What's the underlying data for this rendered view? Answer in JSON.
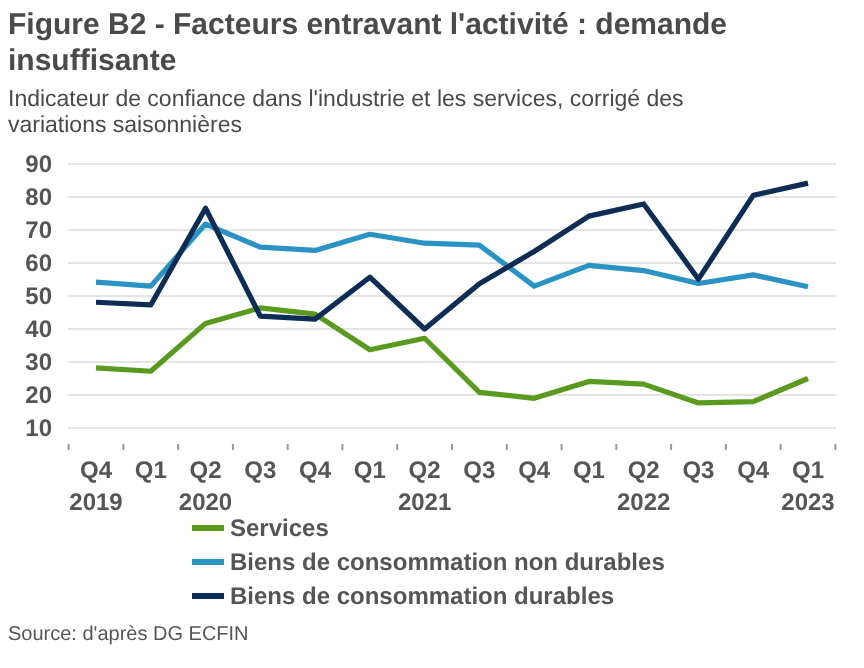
{
  "chart_data": {
    "type": "line",
    "title": "Figure B2 - Facteurs entravant l'activité : demande insuffisante",
    "subtitle": "Indicateur de confiance dans l'industrie et les services, corrigé des variations saisonnières",
    "categories": [
      "Q4\n2019",
      "Q1",
      "Q2\n2020",
      "Q3",
      "Q4",
      "Q1",
      "Q2\n2021",
      "Q3",
      "Q4",
      "Q1",
      "Q2\n2022",
      "Q3",
      "Q4",
      "Q1\n2023"
    ],
    "series": [
      {
        "name": "Services",
        "color": "#5a9a1e",
        "values": [
          28.2,
          27.2,
          41.7,
          46.4,
          44.5,
          33.7,
          37.2,
          20.8,
          19,
          24.1,
          23.3,
          17.6,
          18,
          25
        ]
      },
      {
        "name": "Biens de consommation non durables",
        "color": "#2a93c4",
        "values": [
          54.2,
          53,
          71.8,
          64.8,
          63.8,
          68.7,
          66,
          65.4,
          53,
          59.3,
          57.7,
          53.8,
          56.4,
          52.8
        ]
      },
      {
        "name": "Biens de consommation durables",
        "color": "#0e2d55",
        "values": [
          48.1,
          47.3,
          76.6,
          43.9,
          43,
          55.7,
          40,
          53.7,
          63.5,
          74.2,
          77.9,
          55.1,
          80.5,
          84.2
        ]
      }
    ],
    "ylim": [
      10,
      90
    ],
    "yticks": [
      10,
      20,
      30,
      40,
      50,
      60,
      70,
      80,
      90
    ],
    "grid": "y",
    "legend": "bottom",
    "line_style": "solid",
    "marker": "none",
    "annotations": [
      "Source: d'après DG ECFIN"
    ]
  }
}
